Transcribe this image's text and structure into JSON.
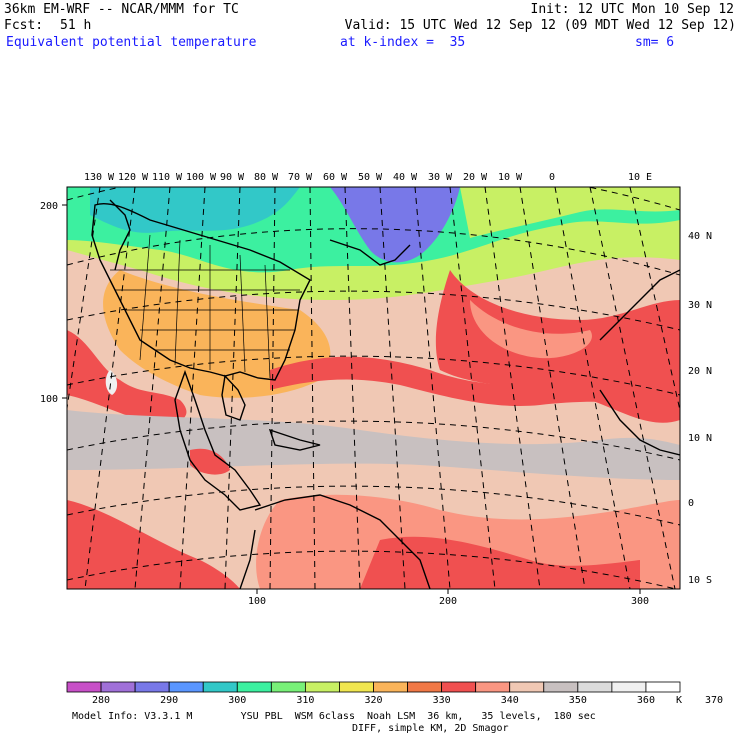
{
  "header": {
    "model": "36km EM-WRF -- NCAR/MMM for TC",
    "init": "Init: 12 UTC Mon 10 Sep 12",
    "fcst_label": "Fcst:",
    "fcst_value": "51 h",
    "valid": "Valid: 15 UTC Wed 12 Sep 12 (09 MDT Wed 12 Sep 12)",
    "field": "Equivalent potential temperature",
    "level": "at k-index =  35",
    "smooth": "sm= 6"
  },
  "map": {
    "top_lon_labels": [
      "130 W",
      "120 W",
      "110 W",
      "100 W",
      "90 W",
      "80 W",
      "70 W",
      "60 W",
      "50 W",
      "40 W",
      "30 W",
      "20 W",
      "10 W",
      "0",
      "10 E"
    ],
    "right_lat_labels": [
      "40 N",
      "30 N",
      "20 N",
      "10 N",
      "0",
      "10 S"
    ],
    "left_grid_labels": [
      "200",
      "100"
    ],
    "bottom_grid_labels": [
      "100",
      "200",
      "300"
    ]
  },
  "colorbar": {
    "labels": [
      "280",
      "290",
      "300",
      "310",
      "320",
      "330",
      "340",
      "350",
      "360",
      "370"
    ],
    "unit": "K",
    "colors": [
      "#c850c8",
      "#a070d8",
      "#7878e8",
      "#5a96ff",
      "#32c8c8",
      "#3cf0a0",
      "#78f078",
      "#c8f064",
      "#f0e650",
      "#fab45a",
      "#f07846",
      "#f05050",
      "#fa9682",
      "#f0c8b4",
      "#c8c0c0",
      "#dcdcdc",
      "#f0f0f0",
      "#ffffff"
    ]
  },
  "footer": {
    "line1": "Model Info: V3.3.1 M        YSU PBL  WSM 6class  Noah LSM  36 km,   35 levels,  180 sec",
    "line2": "DIFF, simple KM, 2D Smagor"
  }
}
